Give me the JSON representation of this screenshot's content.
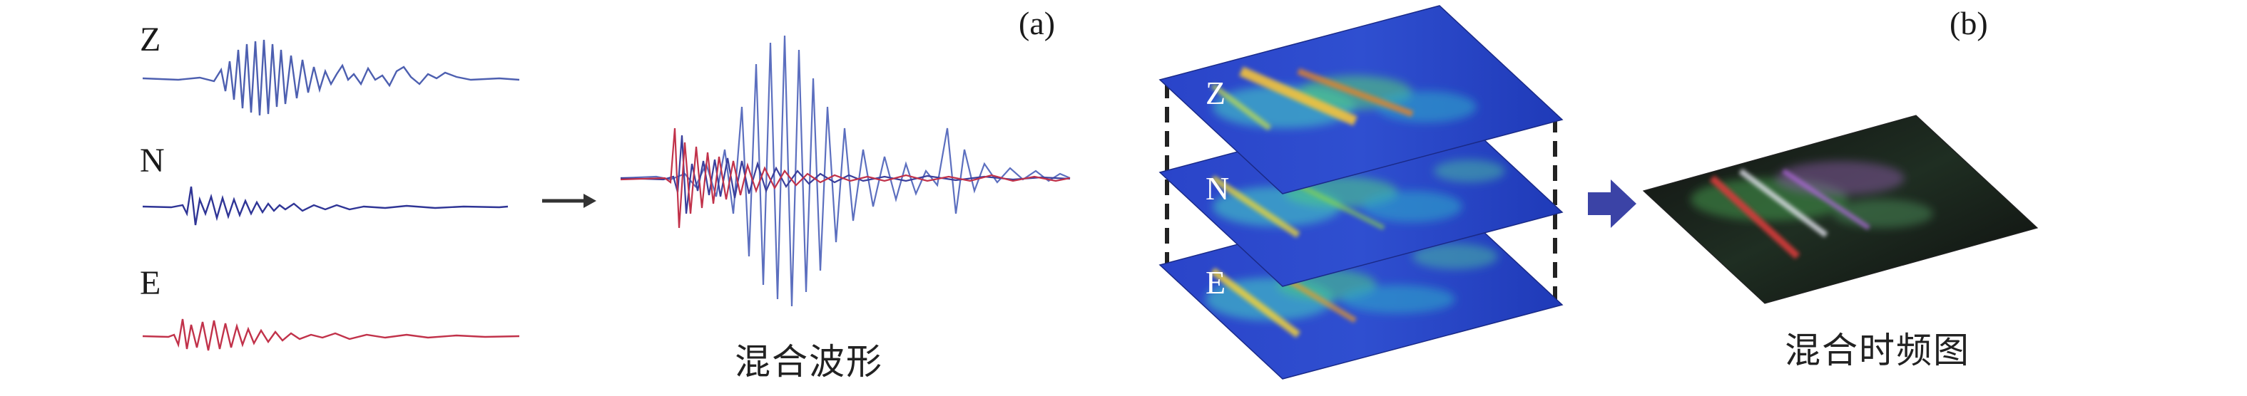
{
  "panel_a": {
    "tag": "(a)",
    "components": [
      {
        "label": "Z",
        "color": "#4d5fb0"
      },
      {
        "label": "N",
        "color": "#2f3596"
      },
      {
        "label": "E",
        "color": "#c1324a"
      }
    ],
    "caption": "混合波形"
  },
  "panel_b": {
    "tag": "(b)",
    "layers": [
      {
        "label": "Z"
      },
      {
        "label": "N"
      },
      {
        "label": "E"
      }
    ],
    "caption": "混合时频图"
  },
  "colors": {
    "arrow": "#333333",
    "big_arrow": "#3b43a6",
    "dashed": "#222222"
  }
}
